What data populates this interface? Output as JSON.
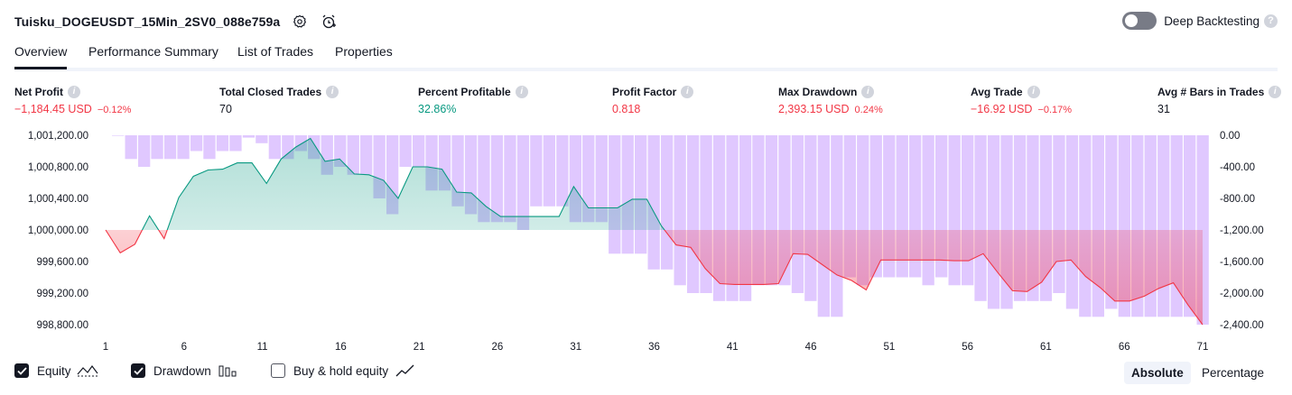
{
  "header": {
    "title": "Tuisku_DOGEUSDT_15Min_2SV0_088e759a",
    "settings_icon": "gear-icon",
    "alert_icon": "alarm-clock-icon",
    "deep_backtesting_label": "Deep Backtesting",
    "deep_backtesting_on": false,
    "help": "?"
  },
  "tabs": [
    {
      "label": "Overview",
      "active": true
    },
    {
      "label": "Performance Summary"
    },
    {
      "label": "List of Trades"
    },
    {
      "label": "Properties"
    }
  ],
  "metrics": [
    {
      "label": "Net Profit",
      "value": "−1,184.45 USD",
      "pct": "−0.12%",
      "color": "#f23645"
    },
    {
      "label": "Total Closed Trades",
      "value": "70",
      "pct": "",
      "color": "#131722"
    },
    {
      "label": "Percent Profitable",
      "value": "32.86%",
      "pct": "",
      "color": "#089981"
    },
    {
      "label": "Profit Factor",
      "value": "0.818",
      "pct": "",
      "color": "#f23645"
    },
    {
      "label": "Max Drawdown",
      "value": "2,393.15 USD",
      "pct": "0.24%",
      "color": "#f23645"
    },
    {
      "label": "Avg Trade",
      "value": "−16.92 USD",
      "pct": "−0.17%",
      "color": "#f23645"
    },
    {
      "label": "Avg # Bars in Trades",
      "value": "31",
      "pct": "",
      "color": "#131722"
    }
  ],
  "info_glyph": "i",
  "chart_data": {
    "type": "line+bar",
    "baseline": 1000000,
    "left_axis": {
      "ticks": [
        "1,001,200.00",
        "1,000,800.00",
        "1,000,400.00",
        "1,000,000.00",
        "999,600.00",
        "999,200.00",
        "998,800.00"
      ],
      "range": [
        998700,
        1001300
      ]
    },
    "right_axis": {
      "ticks": [
        "0.00",
        "-400.00",
        "-800.00",
        "-1,200.00",
        "-1,600.00",
        "-2,000.00",
        "-2,400.00"
      ],
      "range": [
        -2400,
        0
      ]
    },
    "x_ticks": [
      "1",
      "6",
      "11",
      "16",
      "21",
      "26",
      "31",
      "36",
      "41",
      "46",
      "51",
      "56",
      "61",
      "66",
      "71"
    ],
    "series": [
      {
        "name": "Equity",
        "color_up": "#089981",
        "color_down": "#f23645",
        "values": [
          1000000,
          999710,
          999820,
          1000180,
          999890,
          1000410,
          1000680,
          1000760,
          1000770,
          1000850,
          1000850,
          1000590,
          1000900,
          1001050,
          1001160,
          1000870,
          1000900,
          1000710,
          1000700,
          1000630,
          1000400,
          1000800,
          1000800,
          1000770,
          1000480,
          1000470,
          1000300,
          1000170,
          1000170,
          1000170,
          1000170,
          1000170,
          1000550,
          1000280,
          1000280,
          1000280,
          1000390,
          1000390,
          1000050,
          999810,
          999780,
          999510,
          999320,
          999310,
          999310,
          999310,
          999320,
          999700,
          999690,
          999560,
          999430,
          999360,
          999240,
          999620,
          999620,
          999620,
          999620,
          999620,
          999610,
          999610,
          999700,
          999460,
          999230,
          999220,
          999340,
          999600,
          999620,
          999410,
          999270,
          999100,
          999100,
          999160,
          999260,
          999330,
          999050,
          998800
        ]
      },
      {
        "name": "Drawdown",
        "color": "#c79bff",
        "values": [
          0,
          -300,
          -400,
          -300,
          -300,
          -300,
          -200,
          -300,
          -200,
          -200,
          -30,
          -100,
          -300,
          -300,
          -200,
          -300,
          -500,
          -400,
          -500,
          -500,
          -800,
          -1000,
          -400,
          -400,
          -700,
          -700,
          -900,
          -1000,
          -1100,
          -1100,
          -1100,
          -1200,
          -900,
          -900,
          -900,
          -1100,
          -1100,
          -1100,
          -1500,
          -1500,
          -1500,
          -1700,
          -1700,
          -1900,
          -2000,
          -2000,
          -2100,
          -2100,
          -2100,
          -1900,
          -1900,
          -1900,
          -2000,
          -2100,
          -2300,
          -2300,
          -1800,
          -1900,
          -1800,
          -1800,
          -1800,
          -1800,
          -1900,
          -1800,
          -1900,
          -1900,
          -2100,
          -2200,
          -2200,
          -2100,
          -2100,
          -2100,
          -2000,
          -2200,
          -2300,
          -2300,
          -2200,
          -2300,
          -2300,
          -2300,
          -2300,
          -2300,
          -2300,
          -2400
        ]
      }
    ]
  },
  "legend": [
    {
      "label": "Equity",
      "checked": true,
      "icon": "equity-line-icon"
    },
    {
      "label": "Drawdown",
      "checked": true,
      "icon": "drawdown-bars-icon"
    },
    {
      "label": "Buy & hold equity",
      "checked": false,
      "icon": "buy-hold-line-icon"
    }
  ],
  "mode": {
    "absolute": "Absolute",
    "percentage": "Percentage",
    "selected": "Absolute"
  }
}
